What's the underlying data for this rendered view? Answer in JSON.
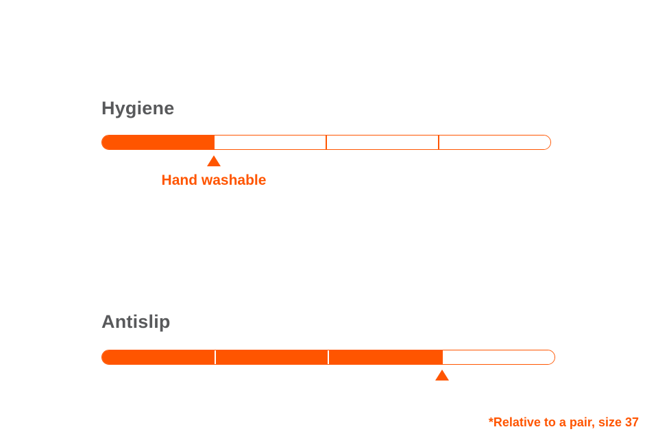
{
  "ratings": [
    {
      "title": "Hygiene",
      "segments_total": 4,
      "segments_filled": 1,
      "marker_level": 0.25,
      "marker_label": "Hand washable"
    },
    {
      "title": "Antislip",
      "segments_total": 4,
      "segments_filled": 3,
      "marker_level": 0.75,
      "marker_label": ""
    }
  ],
  "footnote": "*Relative to a pair, size 37",
  "colors": {
    "accent": "#ff5500",
    "title_text": "#58595b",
    "background": "#ffffff"
  },
  "icons": {
    "marker": "triangle-up-icon"
  }
}
